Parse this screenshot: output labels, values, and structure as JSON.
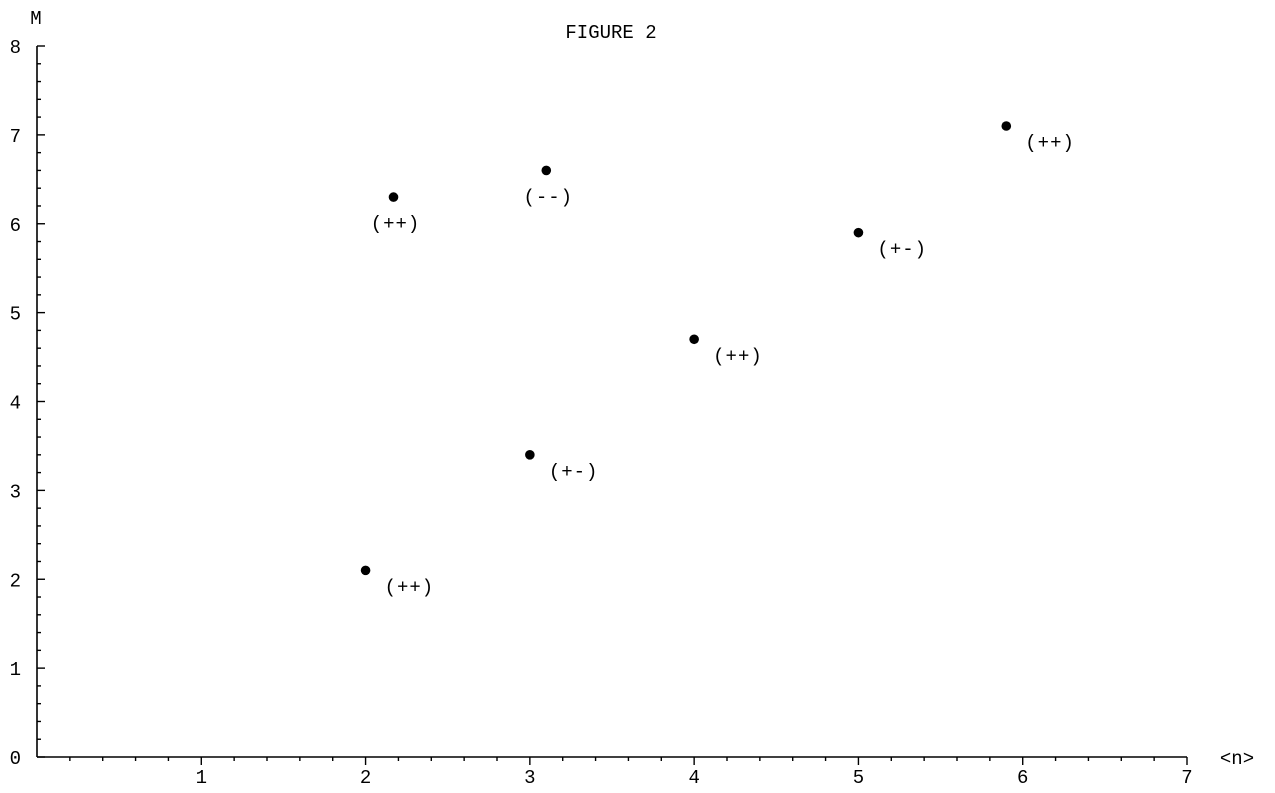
{
  "chart_data": {
    "type": "scatter",
    "title": "FIGURE 2",
    "xlabel": "<n>",
    "ylabel": "M",
    "xlim": [
      0,
      7
    ],
    "ylim": [
      0,
      8
    ],
    "x_ticks": [
      1,
      2,
      3,
      4,
      5,
      6,
      7
    ],
    "y_ticks": [
      0,
      1,
      2,
      3,
      4,
      5,
      6,
      7,
      8
    ],
    "grid": false,
    "marker_color": "#000000",
    "points": [
      {
        "x": 2.0,
        "y": 2.1,
        "label": "(++)",
        "label_pos": "below-right"
      },
      {
        "x": 2.17,
        "y": 6.3,
        "label": "(++)",
        "label_pos": "below"
      },
      {
        "x": 3.0,
        "y": 3.4,
        "label": "(+-)",
        "label_pos": "below-right"
      },
      {
        "x": 3.1,
        "y": 6.6,
        "label": "(--)",
        "label_pos": "below"
      },
      {
        "x": 4.0,
        "y": 4.7,
        "label": "(++)",
        "label_pos": "below-right"
      },
      {
        "x": 5.0,
        "y": 5.9,
        "label": "(+-)",
        "label_pos": "below-right"
      },
      {
        "x": 5.9,
        "y": 7.1,
        "label": "(++)",
        "label_pos": "below-right"
      }
    ]
  }
}
